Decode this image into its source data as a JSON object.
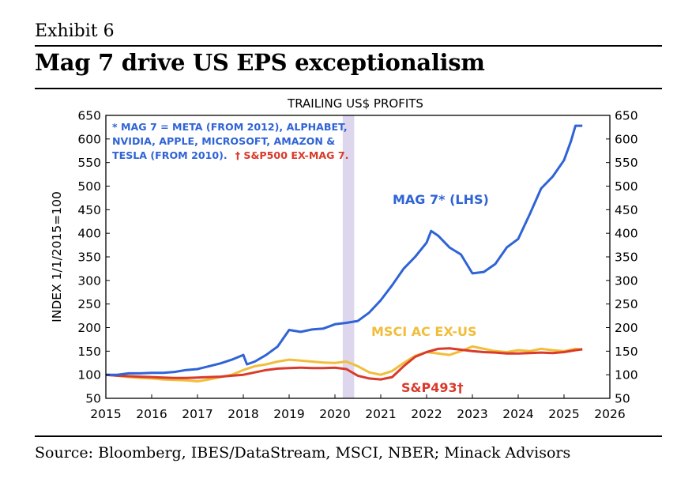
{
  "exhibit": "Exhibit 6",
  "headline": "Mag 7 drive US EPS exceptionalism",
  "source": "Source: Bloomberg, IBES/DataStream, MSCI, NBER; Minack Advisors",
  "chart_data": {
    "type": "line",
    "title": "TRAILING US$ PROFITS",
    "ylabel": "INDEX 1/1/2015=100",
    "xlim": [
      2015,
      2026
    ],
    "ylim": [
      50,
      650
    ],
    "y2lim": [
      50,
      650
    ],
    "xticks": [
      2015,
      2016,
      2017,
      2018,
      2019,
      2020,
      2021,
      2022,
      2023,
      2024,
      2025,
      2026
    ],
    "yticks": [
      50,
      100,
      150,
      200,
      250,
      300,
      350,
      400,
      450,
      500,
      550,
      600,
      650
    ],
    "grid": false,
    "recession_band": [
      2020.17,
      2020.42
    ],
    "notes": [
      "* MAG 7 = META (FROM 2012), ALPHABET,",
      "NVIDIA, APPLE, MICROSOFT, AMAZON &",
      "TESLA (FROM 2010).",
      "† S&P500 EX-MAG 7."
    ],
    "series": [
      {
        "name": "MAG 7* (LHS)",
        "color": "#2f63d6",
        "x": [
          2015.0,
          2015.25,
          2015.5,
          2015.75,
          2016.0,
          2016.25,
          2016.5,
          2016.75,
          2017.0,
          2017.25,
          2017.5,
          2017.75,
          2018.0,
          2018.08,
          2018.25,
          2018.5,
          2018.75,
          2019.0,
          2019.25,
          2019.5,
          2019.75,
          2020.0,
          2020.25,
          2020.5,
          2020.75,
          2021.0,
          2021.25,
          2021.5,
          2021.75,
          2022.0,
          2022.1,
          2022.25,
          2022.5,
          2022.75,
          2023.0,
          2023.25,
          2023.5,
          2023.75,
          2024.0,
          2024.25,
          2024.5,
          2024.75,
          2025.0,
          2025.15,
          2025.25,
          2025.4
        ],
        "values": [
          100,
          100,
          103,
          103,
          104,
          104,
          106,
          110,
          112,
          118,
          124,
          132,
          142,
          122,
          128,
          142,
          160,
          195,
          191,
          196,
          198,
          207,
          210,
          214,
          232,
          258,
          290,
          325,
          350,
          380,
          405,
          395,
          370,
          355,
          315,
          318,
          335,
          370,
          388,
          440,
          495,
          520,
          555,
          595,
          628,
          628
        ]
      },
      {
        "name": "MSCI AC EX-US",
        "color": "#f0be3a",
        "x": [
          2015.0,
          2015.25,
          2015.5,
          2015.75,
          2016.0,
          2016.25,
          2016.5,
          2016.75,
          2017.0,
          2017.25,
          2017.5,
          2017.75,
          2018.0,
          2018.25,
          2018.5,
          2018.75,
          2019.0,
          2019.25,
          2019.5,
          2019.75,
          2020.0,
          2020.25,
          2020.5,
          2020.75,
          2021.0,
          2021.25,
          2021.5,
          2021.75,
          2022.0,
          2022.25,
          2022.5,
          2022.75,
          2023.0,
          2023.25,
          2023.5,
          2023.75,
          2024.0,
          2024.25,
          2024.5,
          2024.75,
          2025.0,
          2025.25,
          2025.4
        ],
        "values": [
          100,
          98,
          95,
          93,
          92,
          90,
          89,
          88,
          86,
          90,
          95,
          100,
          110,
          118,
          122,
          128,
          132,
          130,
          128,
          126,
          125,
          128,
          118,
          105,
          100,
          108,
          125,
          140,
          148,
          145,
          142,
          150,
          160,
          155,
          150,
          148,
          152,
          150,
          155,
          152,
          150,
          155,
          153
        ]
      },
      {
        "name": "S&P493†",
        "color": "#d93a2b",
        "x": [
          2015.0,
          2015.25,
          2015.5,
          2015.75,
          2016.0,
          2016.25,
          2016.5,
          2016.75,
          2017.0,
          2017.25,
          2017.5,
          2017.75,
          2018.0,
          2018.25,
          2018.5,
          2018.75,
          2019.0,
          2019.25,
          2019.5,
          2019.75,
          2020.0,
          2020.25,
          2020.5,
          2020.75,
          2021.0,
          2021.25,
          2021.5,
          2021.75,
          2022.0,
          2022.25,
          2022.5,
          2022.75,
          2023.0,
          2023.25,
          2023.5,
          2023.75,
          2024.0,
          2024.25,
          2024.5,
          2024.75,
          2025.0,
          2025.25,
          2025.4
        ],
        "values": [
          100,
          98,
          97,
          96,
          95,
          94,
          93,
          93,
          94,
          95,
          96,
          98,
          100,
          105,
          110,
          113,
          114,
          115,
          114,
          114,
          115,
          112,
          98,
          92,
          90,
          95,
          118,
          138,
          148,
          155,
          156,
          153,
          150,
          148,
          147,
          145,
          145,
          146,
          147,
          146,
          148,
          152,
          154
        ]
      }
    ]
  }
}
